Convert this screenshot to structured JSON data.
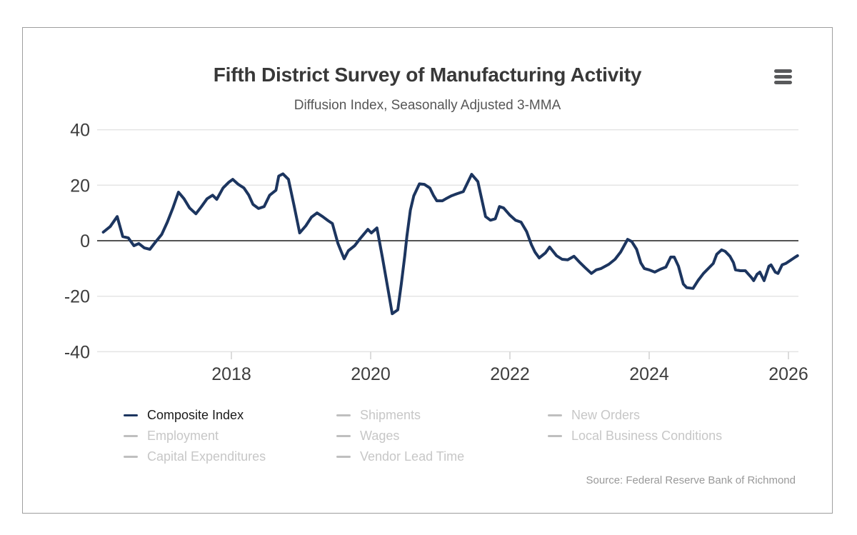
{
  "card": {
    "title": "Fifth District Survey of Manufacturing Activity",
    "subtitle": "Diffusion Index, Seasonally Adjusted 3-MMA",
    "source": "Source: Federal Reserve Bank of Richmond"
  },
  "colors": {
    "accent_navy": "#1c355f",
    "inactive_grey": "#bfbfbf",
    "grid_grey": "#e4e4e4",
    "zero_line": "#1a1a1a",
    "tick_grey": "#d0d0d0",
    "axis_text": "#3d3d3d",
    "border_grey": "#9e9e9e",
    "icon_grey": "#58595b"
  },
  "legend": {
    "items": [
      {
        "label": "Composite Index",
        "active": true
      },
      {
        "label": "Shipments",
        "active": false
      },
      {
        "label": "New Orders",
        "active": false
      },
      {
        "label": "Employment",
        "active": false
      },
      {
        "label": "Wages",
        "active": false
      },
      {
        "label": "Local Business Conditions",
        "active": false
      },
      {
        "label": "Capital Expenditures",
        "active": false
      },
      {
        "label": "Vendor Lead Time",
        "active": false
      }
    ]
  },
  "chart_data": {
    "type": "line",
    "title": "Fifth District Survey of Manufacturing Activity",
    "subtitle": "Diffusion Index, Seasonally Adjusted 3-MMA",
    "xlabel": "",
    "ylabel": "",
    "xlim": [
      2016.07,
      2026.14
    ],
    "ylim": [
      -40,
      40
    ],
    "xticks": [
      2018,
      2020,
      2022,
      2024,
      2026
    ],
    "yticks": [
      40,
      20,
      0,
      -20,
      -40
    ],
    "grid": "horizontal",
    "legend_position": "bottom",
    "series": [
      {
        "name": "Composite Index",
        "color": "#1c355f",
        "points": [
          [
            2016.16,
            3.1
          ],
          [
            2016.26,
            5.1
          ],
          [
            2016.36,
            8.7
          ],
          [
            2016.44,
            1.5
          ],
          [
            2016.52,
            1.0
          ],
          [
            2016.6,
            -1.8
          ],
          [
            2016.67,
            -1.0
          ],
          [
            2016.75,
            -2.6
          ],
          [
            2016.83,
            -3.1
          ],
          [
            2016.91,
            -0.5
          ],
          [
            2017.0,
            2.3
          ],
          [
            2017.08,
            6.7
          ],
          [
            2017.16,
            11.8
          ],
          [
            2017.24,
            17.5
          ],
          [
            2017.32,
            15.1
          ],
          [
            2017.4,
            11.8
          ],
          [
            2017.49,
            9.7
          ],
          [
            2017.57,
            12.3
          ],
          [
            2017.65,
            15.1
          ],
          [
            2017.73,
            16.4
          ],
          [
            2017.79,
            14.9
          ],
          [
            2017.88,
            19.0
          ],
          [
            2017.96,
            21.0
          ],
          [
            2018.02,
            22.1
          ],
          [
            2018.1,
            20.3
          ],
          [
            2018.18,
            19.0
          ],
          [
            2018.25,
            16.4
          ],
          [
            2018.31,
            13.1
          ],
          [
            2018.39,
            11.6
          ],
          [
            2018.47,
            12.3
          ],
          [
            2018.55,
            16.4
          ],
          [
            2018.64,
            18.2
          ],
          [
            2018.68,
            23.3
          ],
          [
            2018.74,
            24.1
          ],
          [
            2018.82,
            22.1
          ],
          [
            2018.9,
            12.6
          ],
          [
            2018.98,
            2.8
          ],
          [
            2019.07,
            5.4
          ],
          [
            2019.15,
            8.5
          ],
          [
            2019.23,
            10.0
          ],
          [
            2019.31,
            8.7
          ],
          [
            2019.39,
            7.2
          ],
          [
            2019.45,
            6.2
          ],
          [
            2019.53,
            -1.0
          ],
          [
            2019.62,
            -6.5
          ],
          [
            2019.68,
            -3.6
          ],
          [
            2019.77,
            -1.8
          ],
          [
            2019.85,
            0.8
          ],
          [
            2019.96,
            4.1
          ],
          [
            2020.01,
            2.8
          ],
          [
            2020.09,
            4.6
          ],
          [
            2020.17,
            -6.2
          ],
          [
            2020.26,
            -19.0
          ],
          [
            2020.31,
            -26.3
          ],
          [
            2020.39,
            -24.9
          ],
          [
            2020.44,
            -15.6
          ],
          [
            2020.49,
            -5.4
          ],
          [
            2020.52,
            1.5
          ],
          [
            2020.57,
            11.0
          ],
          [
            2020.62,
            16.2
          ],
          [
            2020.7,
            20.5
          ],
          [
            2020.77,
            20.3
          ],
          [
            2020.85,
            19.0
          ],
          [
            2020.9,
            16.4
          ],
          [
            2020.95,
            14.4
          ],
          [
            2021.03,
            14.4
          ],
          [
            2021.08,
            15.1
          ],
          [
            2021.16,
            16.2
          ],
          [
            2021.24,
            16.9
          ],
          [
            2021.33,
            17.7
          ],
          [
            2021.45,
            23.9
          ],
          [
            2021.54,
            21.3
          ],
          [
            2021.65,
            8.7
          ],
          [
            2021.72,
            7.4
          ],
          [
            2021.79,
            7.9
          ],
          [
            2021.85,
            12.3
          ],
          [
            2021.91,
            11.8
          ],
          [
            2022.0,
            9.2
          ],
          [
            2022.08,
            7.4
          ],
          [
            2022.16,
            6.7
          ],
          [
            2022.24,
            3.3
          ],
          [
            2022.31,
            -1.5
          ],
          [
            2022.36,
            -4.1
          ],
          [
            2022.42,
            -6.2
          ],
          [
            2022.51,
            -4.4
          ],
          [
            2022.57,
            -2.3
          ],
          [
            2022.67,
            -5.4
          ],
          [
            2022.75,
            -6.7
          ],
          [
            2022.83,
            -6.9
          ],
          [
            2022.92,
            -5.6
          ],
          [
            2023.01,
            -8.0
          ],
          [
            2023.08,
            -9.7
          ],
          [
            2023.17,
            -11.8
          ],
          [
            2023.24,
            -10.5
          ],
          [
            2023.31,
            -10.0
          ],
          [
            2023.42,
            -8.5
          ],
          [
            2023.51,
            -6.7
          ],
          [
            2023.59,
            -4.1
          ],
          [
            2023.69,
            0.5
          ],
          [
            2023.75,
            -0.3
          ],
          [
            2023.82,
            -3.1
          ],
          [
            2023.88,
            -8.0
          ],
          [
            2023.93,
            -10.0
          ],
          [
            2024.0,
            -10.5
          ],
          [
            2024.08,
            -11.3
          ],
          [
            2024.16,
            -10.3
          ],
          [
            2024.24,
            -9.5
          ],
          [
            2024.31,
            -5.9
          ],
          [
            2024.36,
            -5.9
          ],
          [
            2024.42,
            -9.2
          ],
          [
            2024.49,
            -15.6
          ],
          [
            2024.54,
            -16.9
          ],
          [
            2024.63,
            -17.2
          ],
          [
            2024.7,
            -14.4
          ],
          [
            2024.78,
            -11.8
          ],
          [
            2024.87,
            -9.5
          ],
          [
            2024.92,
            -8.2
          ],
          [
            2024.97,
            -4.9
          ],
          [
            2025.04,
            -3.3
          ],
          [
            2025.09,
            -3.8
          ],
          [
            2025.16,
            -5.6
          ],
          [
            2025.21,
            -7.9
          ],
          [
            2025.24,
            -10.5
          ],
          [
            2025.31,
            -10.8
          ],
          [
            2025.38,
            -10.8
          ],
          [
            2025.47,
            -13.3
          ],
          [
            2025.5,
            -14.4
          ],
          [
            2025.55,
            -12.1
          ],
          [
            2025.59,
            -11.3
          ],
          [
            2025.65,
            -14.4
          ],
          [
            2025.72,
            -9.2
          ],
          [
            2025.75,
            -8.7
          ],
          [
            2025.81,
            -11.3
          ],
          [
            2025.85,
            -11.8
          ],
          [
            2025.91,
            -8.7
          ],
          [
            2025.96,
            -8.2
          ],
          [
            2026.01,
            -7.4
          ],
          [
            2026.08,
            -6.2
          ],
          [
            2026.13,
            -5.4
          ]
        ]
      }
    ]
  }
}
